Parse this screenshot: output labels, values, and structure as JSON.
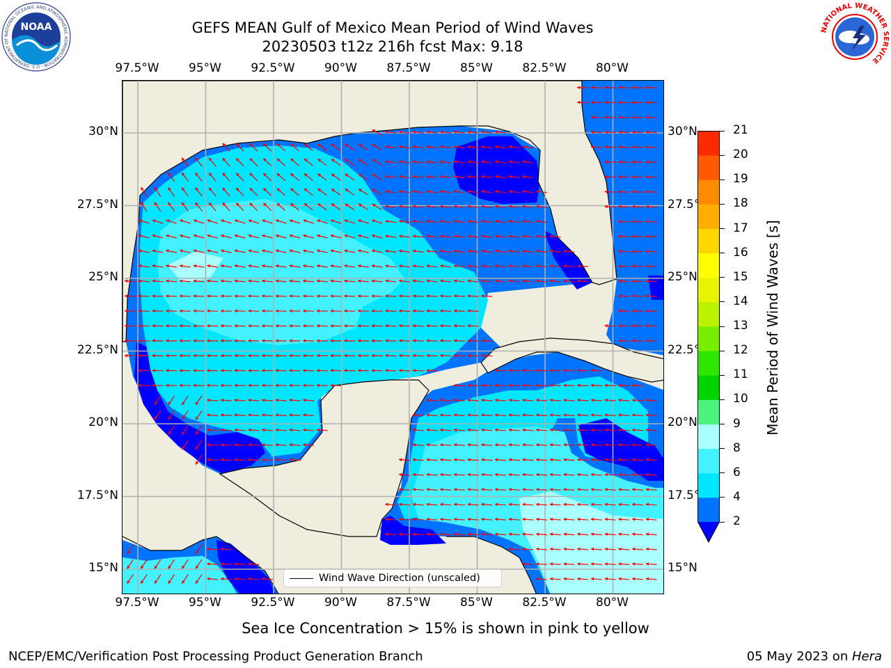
{
  "title": {
    "line1": "GEFS MEAN Gulf of Mexico Mean Period of Wind Waves",
    "line2": "20230503 t12z 216h fcst   Max: 9.18"
  },
  "map": {
    "lon_labels": [
      "97.5°W",
      "95°W",
      "92.5°W",
      "90°W",
      "87.5°W",
      "85°W",
      "82.5°W",
      "80°W"
    ],
    "lat_labels": [
      "30°N",
      "27.5°N",
      "25°N",
      "22.5°N",
      "20°N",
      "17.5°N",
      "15°N"
    ],
    "legend_label": "Wind Wave Direction (unscaled)",
    "land_color": "#efedde",
    "arrow_color": "#ff0000",
    "grid_color": "#b0b0b0"
  },
  "colorbar": {
    "title": "Mean Period of Wind Waves [s]",
    "tick_labels": [
      "2",
      "4",
      "6",
      "8",
      "9",
      "10",
      "11",
      "12",
      "13",
      "14",
      "15",
      "16",
      "17",
      "18",
      "19",
      "20",
      "21"
    ],
    "colors": [
      "#0073ff",
      "#00e6ff",
      "#44f2ff",
      "#aaffff",
      "#4df27f",
      "#00d400",
      "#2ee600",
      "#77ee00",
      "#bbf200",
      "#e8f500",
      "#ffff00",
      "#ffd700",
      "#ffae00",
      "#ff8c00",
      "#ff5a00",
      "#ff2b00",
      "#ff0000"
    ],
    "extend_color": "#0000ff"
  },
  "notes": {
    "sea_ice": "Sea Ice Concentration > 15% is shown in pink to yellow",
    "footer_left": "NCEP/EMC/Verification Post Processing Product Generation Branch",
    "footer_right_prefix": "05 May 2023 on ",
    "footer_right_host": "Hera"
  },
  "logos": {
    "noaa_text": "NOAA",
    "noaa_ring_text": "NATIONAL OCEANIC AND ATMOSPHERIC ADMINISTRATION · U.S. DEPARTMENT OF COMMERCE",
    "nws_ring_text": "NATIONAL WEATHER SERVICE"
  }
}
